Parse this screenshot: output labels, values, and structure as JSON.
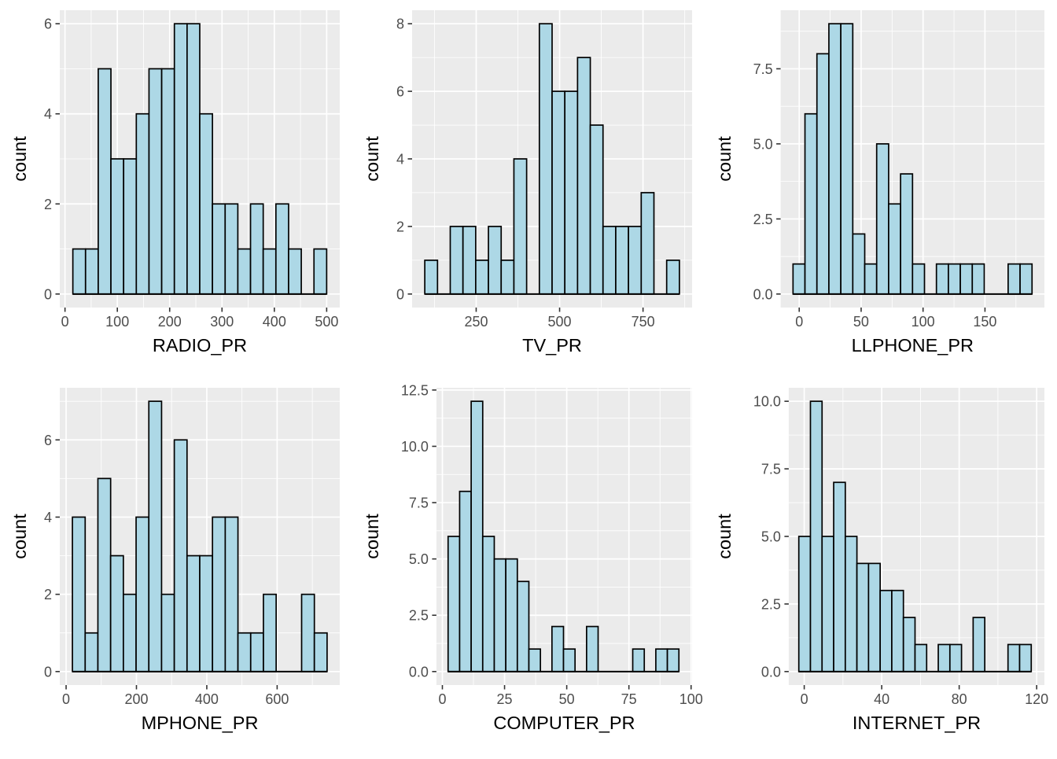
{
  "figure": {
    "background": "#FFFFFF",
    "layout": {
      "rows": 2,
      "cols": 3
    }
  },
  "style": {
    "panel_bg": "#EBEBEB",
    "grid_major_color": "#FFFFFF",
    "grid_minor_color": "#FFFFFF",
    "bar_fill": "#ADD8E6",
    "bar_stroke": "#000000",
    "baseline_color": "#000000",
    "tick_mark_color": "#333333",
    "tick_label_color": "#4D4D4D",
    "axis_title_color": "#000000"
  },
  "chart_data": [
    {
      "type": "bar",
      "subtype": "histogram",
      "xlabel": "RADIO_PR",
      "ylabel": "count",
      "bins": {
        "start": 15,
        "width": 24.25
      },
      "counts": [
        1,
        1,
        5,
        3,
        3,
        4,
        5,
        5,
        6,
        6,
        4,
        2,
        2,
        1,
        2,
        1,
        2,
        1,
        0,
        1
      ],
      "xlim": [
        -10,
        525
      ],
      "ylim": [
        -0.3,
        6.3
      ],
      "x_ticks": {
        "values": [
          0,
          100,
          200,
          300,
          400,
          500
        ],
        "labels": [
          "0",
          "100",
          "200",
          "300",
          "400",
          "500"
        ]
      },
      "x_minor": [
        50,
        150,
        250,
        350,
        450
      ],
      "y_ticks": {
        "values": [
          0,
          2,
          4,
          6
        ],
        "labels": [
          "0",
          "2",
          "4",
          "6"
        ]
      },
      "y_minor": [
        1,
        3,
        5
      ]
    },
    {
      "type": "bar",
      "subtype": "histogram",
      "xlabel": "TV_PR",
      "ylabel": "count",
      "bins": {
        "start": 96,
        "width": 38.15
      },
      "counts": [
        1,
        0,
        2,
        2,
        1,
        2,
        1,
        4,
        0,
        8,
        6,
        6,
        7,
        5,
        2,
        2,
        2,
        3,
        0,
        1
      ],
      "xlim": [
        58,
        897
      ],
      "ylim": [
        -0.4,
        8.4
      ],
      "x_ticks": {
        "values": [
          250,
          500,
          750
        ],
        "labels": [
          "250",
          "500",
          "750"
        ]
      },
      "x_minor": [
        125,
        375,
        625,
        875
      ],
      "y_ticks": {
        "values": [
          0,
          2,
          4,
          6,
          8
        ],
        "labels": [
          "0",
          "2",
          "4",
          "6",
          "8"
        ]
      },
      "y_minor": [
        1,
        3,
        5,
        7
      ]
    },
    {
      "type": "bar",
      "subtype": "histogram",
      "xlabel": "LLPHONE_PR",
      "ylabel": "count",
      "bins": {
        "start": -5,
        "width": 9.65
      },
      "counts": [
        1,
        6,
        8,
        9,
        9,
        2,
        1,
        5,
        3,
        4,
        1,
        0,
        1,
        1,
        1,
        1,
        0,
        0,
        1,
        1
      ],
      "xlim": [
        -15,
        198
      ],
      "ylim": [
        -0.45,
        9.45
      ],
      "x_ticks": {
        "values": [
          0,
          50,
          100,
          150
        ],
        "labels": [
          "0",
          "50",
          "100",
          "150"
        ]
      },
      "x_minor": [
        25,
        75,
        125,
        175
      ],
      "y_ticks": {
        "values": [
          0,
          2.5,
          5,
          7.5
        ],
        "labels": [
          "0.0",
          "2.5",
          "5.0",
          "7.5"
        ]
      },
      "y_minor": [
        1.25,
        3.75,
        6.25,
        8.75
      ]
    },
    {
      "type": "bar",
      "subtype": "histogram",
      "xlabel": "MPHONE_PR",
      "ylabel": "count",
      "bins": {
        "start": 18,
        "width": 36.2
      },
      "counts": [
        4,
        1,
        5,
        3,
        2,
        4,
        7,
        2,
        6,
        3,
        3,
        4,
        4,
        1,
        1,
        2,
        0,
        0,
        2,
        1
      ],
      "xlim": [
        -18,
        778
      ],
      "ylim": [
        -0.35,
        7.35
      ],
      "x_ticks": {
        "values": [
          0,
          200,
          400,
          600
        ],
        "labels": [
          "0",
          "200",
          "400",
          "600"
        ]
      },
      "x_minor": [
        100,
        300,
        500,
        700
      ],
      "y_ticks": {
        "values": [
          0,
          2,
          4,
          6
        ],
        "labels": [
          "0",
          "2",
          "4",
          "6"
        ]
      },
      "y_minor": [
        1,
        3,
        5,
        7
      ]
    },
    {
      "type": "bar",
      "subtype": "histogram",
      "xlabel": "COMPUTER_PR",
      "ylabel": "count",
      "bins": {
        "start": 2.3,
        "width": 4.64
      },
      "counts": [
        6,
        8,
        12,
        6,
        5,
        5,
        4,
        1,
        0,
        2,
        1,
        0,
        2,
        0,
        0,
        0,
        1,
        0,
        1,
        1
      ],
      "xlim": [
        -2.4,
        100.4
      ],
      "ylim": [
        -0.6,
        12.6
      ],
      "x_ticks": {
        "values": [
          0,
          25,
          50,
          75,
          100
        ],
        "labels": [
          "0",
          "25",
          "50",
          "75",
          "100"
        ]
      },
      "x_minor": [
        12.5,
        37.5,
        62.5,
        87.5
      ],
      "y_ticks": {
        "values": [
          0,
          2.5,
          5,
          7.5,
          10,
          12.5
        ],
        "labels": [
          "0.0",
          "2.5",
          "5.0",
          "7.5",
          "10.0",
          "12.5"
        ]
      },
      "y_minor": [
        1.25,
        3.75,
        6.25,
        8.75,
        11.25
      ]
    },
    {
      "type": "bar",
      "subtype": "histogram",
      "xlabel": "INTERNET_PR",
      "ylabel": "count",
      "bins": {
        "start": -2.8,
        "width": 6.0
      },
      "counts": [
        5,
        10,
        5,
        7,
        5,
        4,
        4,
        3,
        3,
        2,
        1,
        0,
        1,
        1,
        0,
        2,
        0,
        0,
        1,
        1
      ],
      "xlim": [
        -8,
        124
      ],
      "ylim": [
        -0.5,
        10.5
      ],
      "x_ticks": {
        "values": [
          0,
          40,
          80,
          120
        ],
        "labels": [
          "0",
          "40",
          "80",
          "120"
        ]
      },
      "x_minor": [
        20,
        60,
        100
      ],
      "y_ticks": {
        "values": [
          0,
          2.5,
          5,
          7.5,
          10
        ],
        "labels": [
          "0.0",
          "2.5",
          "5.0",
          "7.5",
          "10.0"
        ]
      },
      "y_minor": [
        1.25,
        3.75,
        6.25,
        8.75
      ]
    }
  ]
}
